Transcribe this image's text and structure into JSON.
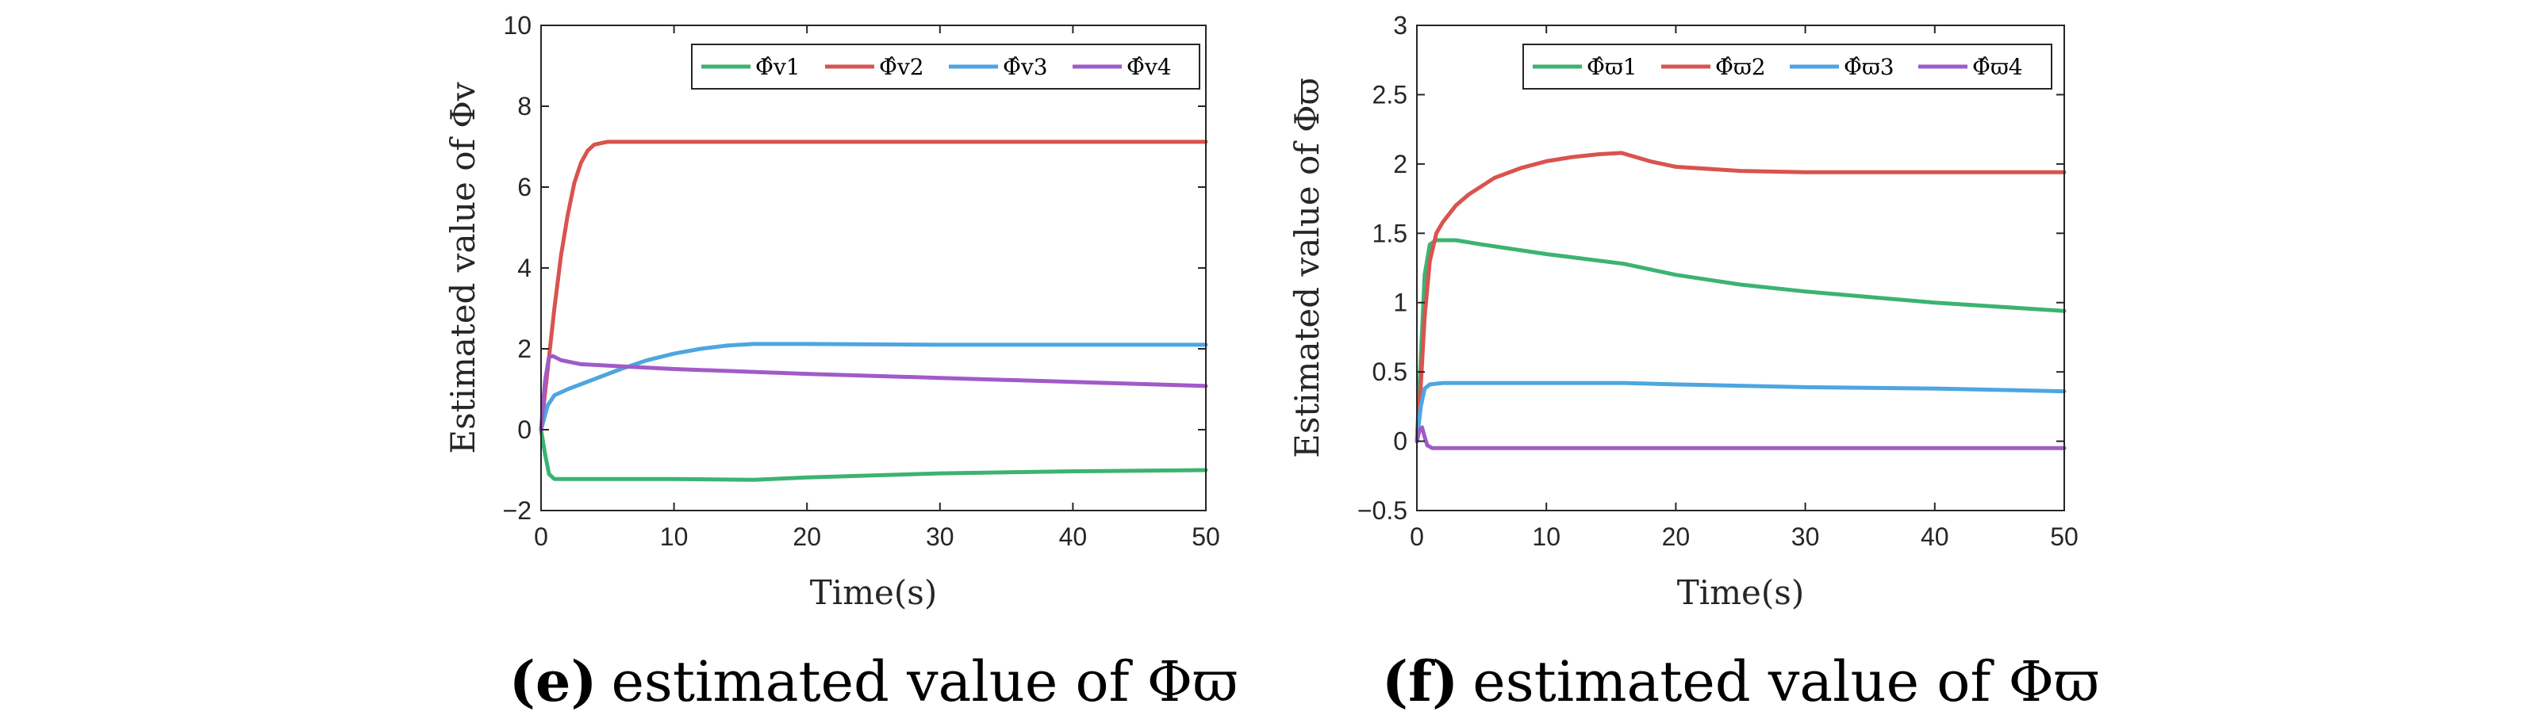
{
  "chart_data": [
    {
      "type": "line",
      "xlabel": "Time(s)",
      "ylabel": "Estimated value of Φv",
      "xlim": [
        0,
        50
      ],
      "ylim": [
        -2,
        10
      ],
      "xticks": [
        "0",
        "10",
        "20",
        "30",
        "40",
        "50"
      ],
      "yticks": [
        "-2",
        "0",
        "2",
        "4",
        "6",
        "8",
        "10"
      ],
      "legend_position": "top-right",
      "caption_label": "(e)",
      "caption_text": "estimated value of Φϖ",
      "series": [
        {
          "name": "Φ̂v1",
          "color": "#3cb371",
          "x": [
            0,
            0.3,
            0.6,
            1,
            2,
            5,
            10,
            16,
            20,
            30,
            40,
            50
          ],
          "y": [
            0,
            -0.6,
            -1.1,
            -1.22,
            -1.22,
            -1.22,
            -1.22,
            -1.24,
            -1.18,
            -1.08,
            -1.03,
            -1.0
          ]
        },
        {
          "name": "Φ̂v2",
          "color": "#d9534f",
          "x": [
            0,
            0.5,
            1,
            1.5,
            2,
            2.5,
            3,
            3.5,
            4,
            5,
            6,
            10,
            20,
            30,
            40,
            50
          ],
          "y": [
            0,
            1.5,
            3.0,
            4.3,
            5.3,
            6.1,
            6.6,
            6.9,
            7.05,
            7.12,
            7.12,
            7.12,
            7.12,
            7.12,
            7.12,
            7.12
          ]
        },
        {
          "name": "Φ̂v3",
          "color": "#4da6e0",
          "x": [
            0,
            0.5,
            1,
            2,
            4,
            6,
            8,
            10,
            12,
            14,
            16,
            20,
            30,
            40,
            50
          ],
          "y": [
            0,
            0.6,
            0.85,
            1.0,
            1.25,
            1.5,
            1.72,
            1.88,
            2.0,
            2.08,
            2.12,
            2.12,
            2.1,
            2.1,
            2.1
          ]
        },
        {
          "name": "Φ̂v4",
          "color": "#a05bc8",
          "x": [
            0,
            0.3,
            0.6,
            0.9,
            1.5,
            3,
            10,
            20,
            30,
            40,
            50
          ],
          "y": [
            0,
            1.2,
            1.8,
            1.82,
            1.72,
            1.62,
            1.5,
            1.38,
            1.28,
            1.18,
            1.08
          ]
        }
      ]
    },
    {
      "type": "line",
      "xlabel": "Time(s)",
      "ylabel": "Estimated value of Φϖ",
      "xlim": [
        0,
        50
      ],
      "ylim": [
        -0.5,
        3
      ],
      "xticks": [
        "0",
        "10",
        "20",
        "30",
        "40",
        "50"
      ],
      "yticks": [
        "-0.5",
        "0",
        "0.5",
        "1",
        "1.5",
        "2",
        "2.5",
        "3"
      ],
      "legend_position": "top-right",
      "caption_label": "(f)",
      "caption_text": "estimated value of Φϖ",
      "series": [
        {
          "name": "Φ̂ϖ1",
          "color": "#3cb371",
          "x": [
            0,
            0.3,
            0.6,
            1,
            1.5,
            2,
            3,
            5,
            10,
            16,
            20,
            25,
            30,
            35,
            40,
            45,
            50
          ],
          "y": [
            0,
            0.6,
            1.2,
            1.42,
            1.45,
            1.45,
            1.45,
            1.42,
            1.35,
            1.28,
            1.2,
            1.13,
            1.08,
            1.04,
            1.0,
            0.97,
            0.94
          ]
        },
        {
          "name": "Φ̂ϖ2",
          "color": "#d9534f",
          "x": [
            0,
            0.3,
            0.6,
            1,
            1.5,
            2,
            3,
            4,
            6,
            8,
            10,
            12,
            14,
            15.8,
            18,
            20,
            25,
            30,
            40,
            50
          ],
          "y": [
            0,
            0.4,
            0.9,
            1.3,
            1.5,
            1.58,
            1.7,
            1.78,
            1.9,
            1.97,
            2.02,
            2.05,
            2.07,
            2.08,
            2.02,
            1.98,
            1.95,
            1.94,
            1.94,
            1.94
          ]
        },
        {
          "name": "Φ̂ϖ3",
          "color": "#4da6e0",
          "x": [
            0,
            0.3,
            0.6,
            1,
            2,
            5,
            10,
            16,
            20,
            30,
            40,
            50
          ],
          "y": [
            0,
            0.25,
            0.38,
            0.41,
            0.42,
            0.42,
            0.42,
            0.42,
            0.41,
            0.39,
            0.38,
            0.36
          ]
        },
        {
          "name": "Φ̂ϖ4",
          "color": "#a05bc8",
          "x": [
            0,
            0.2,
            0.4,
            0.6,
            0.8,
            1.2,
            2,
            10,
            20,
            30,
            40,
            50
          ],
          "y": [
            0,
            0.08,
            0.1,
            0.03,
            -0.03,
            -0.05,
            -0.05,
            -0.05,
            -0.05,
            -0.05,
            -0.05,
            -0.05
          ]
        }
      ]
    }
  ]
}
